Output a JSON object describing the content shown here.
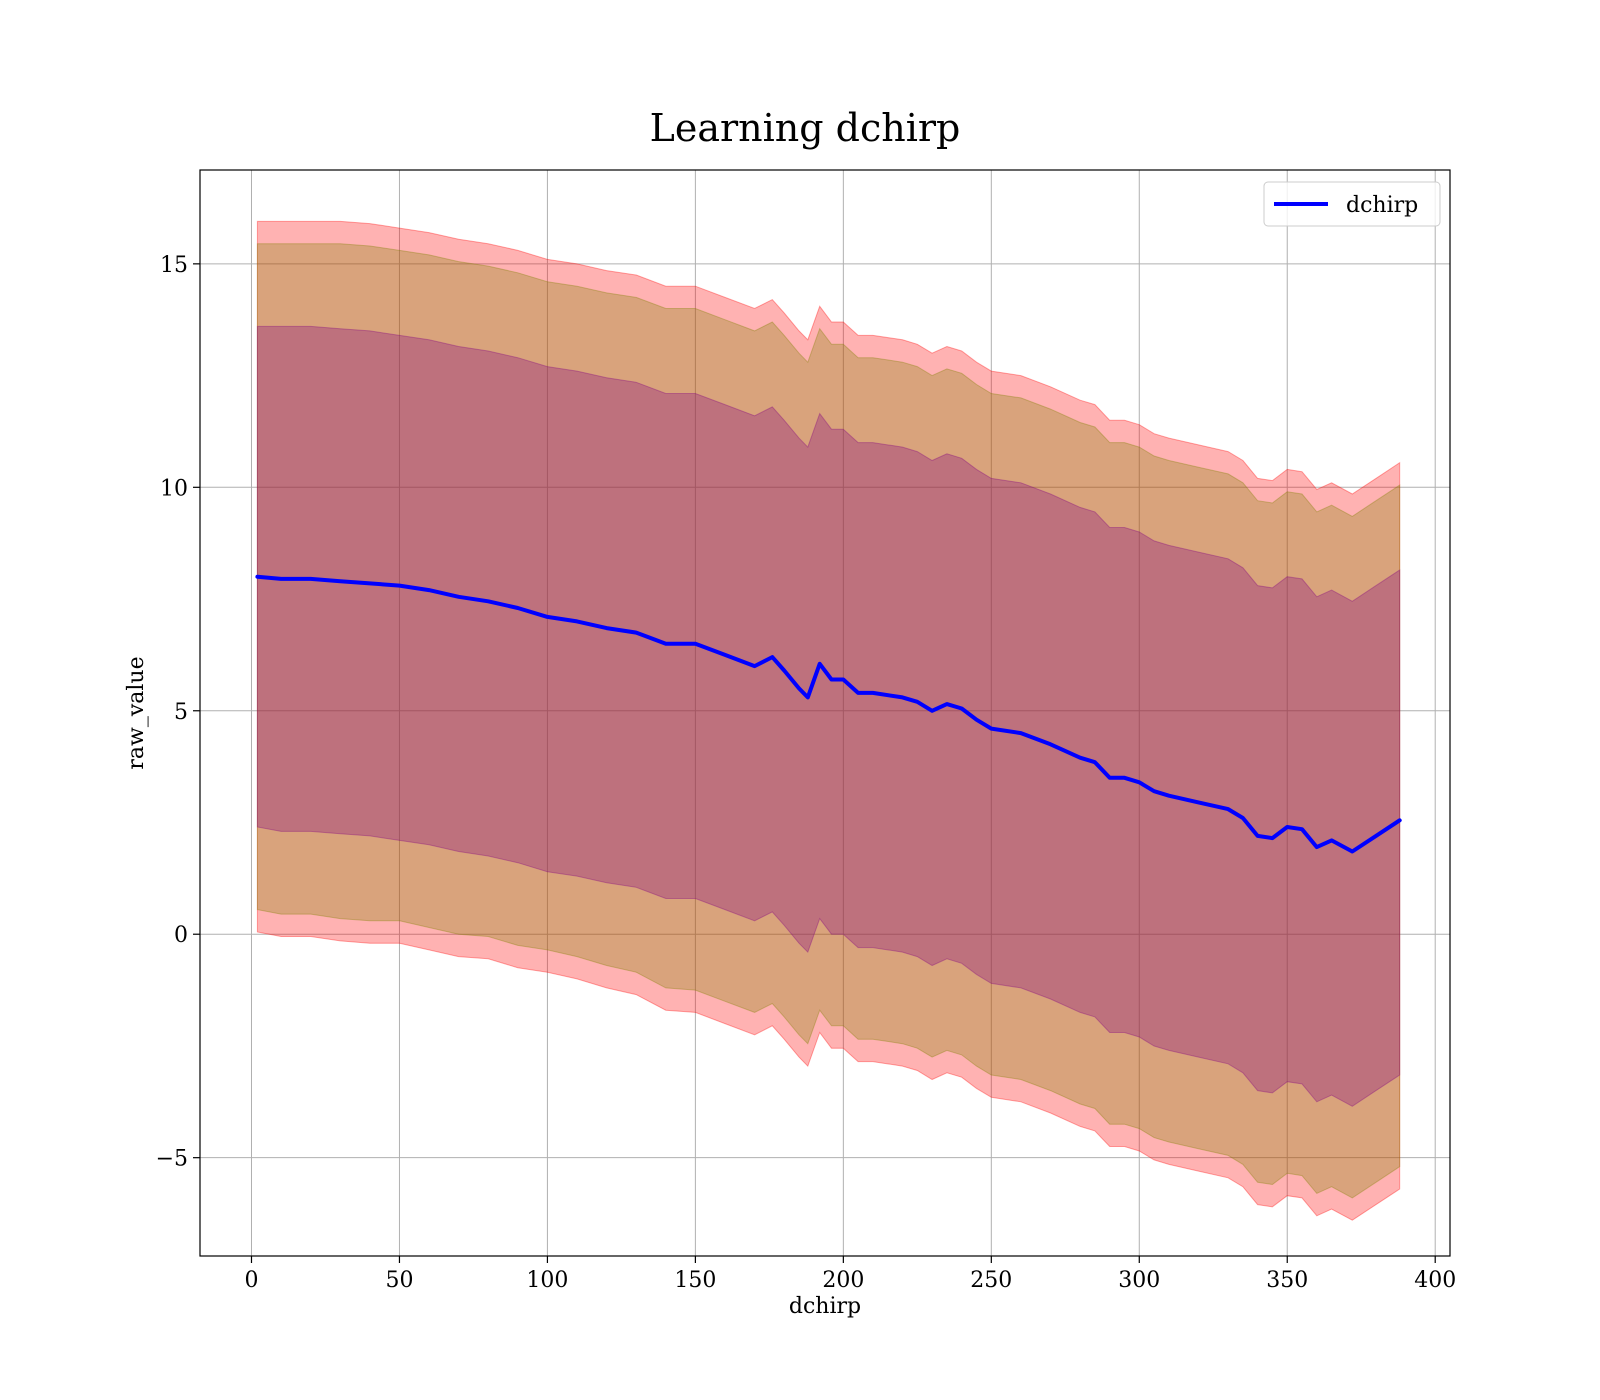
{
  "chart_data": {
    "type": "line",
    "title": "Learning dchirp",
    "xlabel": "dchirp",
    "ylabel": "raw_value",
    "xlim": [
      -17.4,
      405
    ],
    "ylim": [
      -7.2,
      17.1
    ],
    "grid": true,
    "legend_placement": "top-right",
    "x_ticks": [
      0,
      50,
      100,
      150,
      200,
      250,
      300,
      350,
      400
    ],
    "x_tick_labels": [
      "0",
      "50",
      "100",
      "150",
      "200",
      "250",
      "300",
      "350",
      "400"
    ],
    "y_ticks": [
      -5,
      0,
      5,
      10,
      15
    ],
    "y_tick_labels": [
      "−5",
      "0",
      "5",
      "10",
      "15"
    ],
    "x": [
      2,
      10,
      20,
      30,
      40,
      50,
      60,
      70,
      80,
      90,
      100,
      110,
      120,
      130,
      140,
      150,
      160,
      170,
      176,
      180,
      185,
      188,
      192,
      196,
      200,
      205,
      210,
      220,
      225,
      230,
      235,
      240,
      245,
      250,
      260,
      270,
      280,
      285,
      290,
      295,
      300,
      305,
      310,
      320,
      330,
      335,
      340,
      345,
      350,
      355,
      360,
      365,
      372,
      380,
      388
    ],
    "series": [
      {
        "name": "dchirp",
        "color": "#0000ff",
        "values": [
          8.0,
          7.95,
          7.95,
          7.9,
          7.85,
          7.8,
          7.7,
          7.55,
          7.45,
          7.3,
          7.1,
          7.0,
          6.85,
          6.75,
          6.5,
          6.5,
          6.25,
          6.0,
          6.2,
          5.9,
          5.5,
          5.3,
          6.05,
          5.7,
          5.7,
          5.4,
          5.4,
          5.3,
          5.2,
          5.0,
          5.15,
          5.05,
          4.8,
          4.6,
          4.5,
          4.25,
          3.95,
          3.85,
          3.5,
          3.5,
          3.4,
          3.2,
          3.1,
          2.95,
          2.8,
          2.6,
          2.2,
          2.15,
          2.4,
          2.35,
          1.95,
          2.1,
          1.85,
          2.2,
          2.55
        ]
      }
    ],
    "bands": [
      {
        "color": "#ff0000",
        "opacity": 0.3,
        "lower": [
          0.05,
          -0.05,
          -0.05,
          -0.15,
          -0.2,
          -0.2,
          -0.35,
          -0.5,
          -0.55,
          -0.75,
          -0.85,
          -1.0,
          -1.2,
          -1.35,
          -1.7,
          -1.75,
          -2.0,
          -2.25,
          -2.05,
          -2.35,
          -2.75,
          -2.95,
          -2.2,
          -2.55,
          -2.55,
          -2.85,
          -2.85,
          -2.95,
          -3.05,
          -3.25,
          -3.1,
          -3.2,
          -3.45,
          -3.65,
          -3.75,
          -4.0,
          -4.3,
          -4.4,
          -4.75,
          -4.75,
          -4.85,
          -5.05,
          -5.15,
          -5.3,
          -5.45,
          -5.65,
          -6.05,
          -6.1,
          -5.85,
          -5.9,
          -6.3,
          -6.15,
          -6.4,
          -6.05,
          -5.7
        ],
        "upper": [
          15.95,
          15.95,
          15.95,
          15.95,
          15.9,
          15.8,
          15.7,
          15.55,
          15.45,
          15.3,
          15.1,
          15.0,
          14.85,
          14.75,
          14.5,
          14.5,
          14.25,
          14.0,
          14.2,
          13.9,
          13.5,
          13.3,
          14.05,
          13.7,
          13.7,
          13.4,
          13.4,
          13.3,
          13.2,
          13.0,
          13.15,
          13.05,
          12.8,
          12.6,
          12.5,
          12.25,
          11.95,
          11.85,
          11.5,
          11.5,
          11.4,
          11.2,
          11.1,
          10.95,
          10.8,
          10.6,
          10.2,
          10.15,
          10.4,
          10.35,
          9.95,
          10.1,
          9.85,
          10.2,
          10.55
        ]
      },
      {
        "color": "#808000",
        "opacity": 0.3,
        "lower": [
          0.55,
          0.45,
          0.45,
          0.35,
          0.3,
          0.3,
          0.15,
          0.0,
          -0.05,
          -0.25,
          -0.35,
          -0.5,
          -0.7,
          -0.85,
          -1.2,
          -1.25,
          -1.5,
          -1.75,
          -1.55,
          -1.85,
          -2.25,
          -2.45,
          -1.7,
          -2.05,
          -2.05,
          -2.35,
          -2.35,
          -2.45,
          -2.55,
          -2.75,
          -2.6,
          -2.7,
          -2.95,
          -3.15,
          -3.25,
          -3.5,
          -3.8,
          -3.9,
          -4.25,
          -4.25,
          -4.35,
          -4.55,
          -4.65,
          -4.8,
          -4.95,
          -5.15,
          -5.55,
          -5.6,
          -5.35,
          -5.4,
          -5.8,
          -5.65,
          -5.9,
          -5.55,
          -5.2
        ],
        "upper": [
          15.45,
          15.45,
          15.45,
          15.45,
          15.4,
          15.3,
          15.2,
          15.05,
          14.95,
          14.8,
          14.6,
          14.5,
          14.35,
          14.25,
          14.0,
          14.0,
          13.75,
          13.5,
          13.7,
          13.4,
          13.0,
          12.8,
          13.55,
          13.2,
          13.2,
          12.9,
          12.9,
          12.8,
          12.7,
          12.5,
          12.65,
          12.55,
          12.3,
          12.1,
          12.0,
          11.75,
          11.45,
          11.35,
          11.0,
          11.0,
          10.9,
          10.7,
          10.6,
          10.45,
          10.3,
          10.1,
          9.7,
          9.65,
          9.9,
          9.85,
          9.45,
          9.6,
          9.35,
          9.7,
          10.05
        ]
      },
      {
        "color": "#800080",
        "opacity": 0.3,
        "lower": [
          2.4,
          2.3,
          2.3,
          2.25,
          2.2,
          2.1,
          2.0,
          1.85,
          1.75,
          1.6,
          1.4,
          1.3,
          1.15,
          1.05,
          0.8,
          0.8,
          0.55,
          0.3,
          0.5,
          0.2,
          -0.2,
          -0.4,
          0.35,
          0.0,
          0.0,
          -0.3,
          -0.3,
          -0.4,
          -0.5,
          -0.7,
          -0.55,
          -0.65,
          -0.9,
          -1.1,
          -1.2,
          -1.45,
          -1.75,
          -1.85,
          -2.2,
          -2.2,
          -2.3,
          -2.5,
          -2.6,
          -2.75,
          -2.9,
          -3.1,
          -3.5,
          -3.55,
          -3.3,
          -3.35,
          -3.75,
          -3.6,
          -3.85,
          -3.5,
          -3.15
        ],
        "upper": [
          13.6,
          13.6,
          13.6,
          13.55,
          13.5,
          13.4,
          13.3,
          13.15,
          13.05,
          12.9,
          12.7,
          12.6,
          12.45,
          12.35,
          12.1,
          12.1,
          11.85,
          11.6,
          11.8,
          11.5,
          11.1,
          10.9,
          11.65,
          11.3,
          11.3,
          11.0,
          11.0,
          10.9,
          10.8,
          10.6,
          10.75,
          10.65,
          10.4,
          10.2,
          10.1,
          9.85,
          9.55,
          9.45,
          9.1,
          9.1,
          9.0,
          8.8,
          8.7,
          8.55,
          8.4,
          8.2,
          7.8,
          7.75,
          8.0,
          7.95,
          7.55,
          7.7,
          7.45,
          7.8,
          8.15
        ]
      }
    ]
  }
}
